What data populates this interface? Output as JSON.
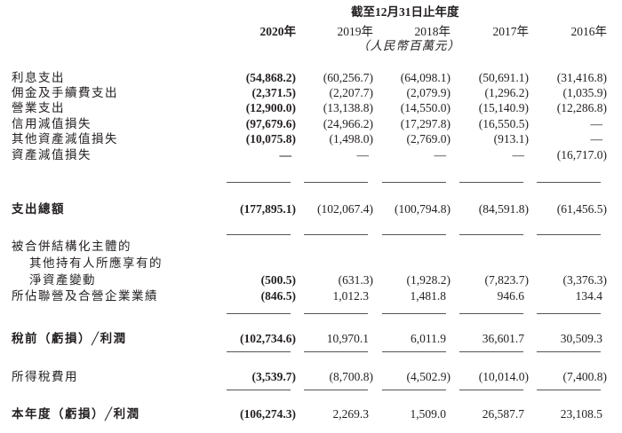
{
  "header": {
    "period": "截至12月31日止年度",
    "years": [
      "2020年",
      "2019年",
      "2018年",
      "2017年",
      "2016年"
    ],
    "unit": "（人民幣百萬元）"
  },
  "rows": [
    {
      "label": [
        "利息支出"
      ],
      "values": [
        "(54,868.2)",
        "(60,256.7)",
        "(64,098.1)",
        "(50,691.1)",
        "(31,416.8)"
      ]
    },
    {
      "label": [
        "佣金及手續費支出"
      ],
      "values": [
        "(2,371.5)",
        "(2,207.7)",
        "(2,079.9)",
        "(1,296.2)",
        "(1,035.9)"
      ]
    },
    {
      "label": [
        "營業支出"
      ],
      "values": [
        "(12,900.0)",
        "(13,138.8)",
        "(14,550.0)",
        "(15,140.9)",
        "(12,286.8)"
      ]
    },
    {
      "label": [
        "信用減值損失"
      ],
      "values": [
        "(97,679.6)",
        "(24,966.2)",
        "(17,297.8)",
        "(16,550.5)",
        "—"
      ]
    },
    {
      "label": [
        "其他資產減值損失"
      ],
      "values": [
        "(10,075.8)",
        "(1,498.0)",
        "(2,769.0)",
        "(913.1)",
        "—"
      ]
    },
    {
      "label": [
        "資產減值損失"
      ],
      "values": [
        "—",
        "—",
        "—",
        "—",
        "(16,717.0)"
      ]
    },
    {
      "label": [
        "支出總額"
      ],
      "values": [
        "(177,895.1)",
        "(102,067.4)",
        "(100,794.8)",
        "(84,591.8)",
        "(61,456.5)"
      ]
    },
    {
      "label": [
        "被合併結構化主體的",
        "其他持有人所應享有的",
        "淨資產變動"
      ],
      "values": [
        "(500.5)",
        "(631.3)",
        "(1,928.2)",
        "(7,823.7)",
        "(3,376.3)"
      ]
    },
    {
      "label": [
        "所佔聯營及合營企業業績"
      ],
      "values": [
        "(846.5)",
        "1,012.3",
        "1,481.8",
        "946.6",
        "134.4"
      ]
    },
    {
      "label": [
        "稅前（虧損）╱利潤"
      ],
      "values": [
        "(102,734.6)",
        "10,970.1",
        "6,011.9",
        "36,601.7",
        "30,509.3"
      ]
    },
    {
      "label": [
        "所得稅費用"
      ],
      "values": [
        "(3,539.7)",
        "(8,700.8)",
        "(4,502.9)",
        "(10,014.0)",
        "(7,400.8)"
      ]
    },
    {
      "label": [
        "本年度（虧損）╱利潤"
      ],
      "values": [
        "(106,274.3)",
        "2,269.3",
        "1,509.0",
        "26,587.7",
        "23,108.5"
      ]
    }
  ]
}
